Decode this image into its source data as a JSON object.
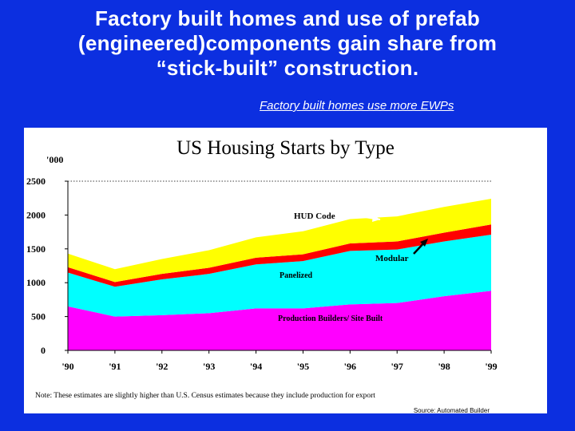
{
  "headline": {
    "line1": "Factory built homes and  use of prefab",
    "line2": "(engineered)components gain share from",
    "line3": "“stick-built” construction."
  },
  "subheadline": "Factory built homes use more EWPs",
  "colors": {
    "background": "#0c2fe0",
    "production": "#ff00ff",
    "panelized": "#00ffff",
    "modular": "#ff0000",
    "hud": "#ffff00"
  },
  "chart_data": {
    "type": "area",
    "stacked": true,
    "title": "US Housing Starts by Type",
    "ylabel": "'000",
    "ylim": [
      0,
      2500
    ],
    "yticks": [
      0,
      500,
      1000,
      1500,
      2000,
      2500
    ],
    "ytick_labels": [
      "0",
      "500",
      "1000",
      "1500",
      "2000",
      "2500"
    ],
    "categories": [
      "'90",
      "'91",
      "'92",
      "'93",
      "'94",
      "'95",
      "'96",
      "'97",
      "'98",
      "'99"
    ],
    "gridline": 2500,
    "series": [
      {
        "name": "Production Builders/ Site Built",
        "color": "#ff00ff",
        "values": [
          650,
          500,
          520,
          550,
          620,
          620,
          680,
          700,
          800,
          880
        ]
      },
      {
        "name": "Panelized",
        "color": "#00ffff",
        "values": [
          500,
          440,
          530,
          580,
          650,
          700,
          790,
          790,
          810,
          830
        ]
      },
      {
        "name": "Modular",
        "color": "#ff0000",
        "values": [
          80,
          70,
          80,
          90,
          100,
          100,
          110,
          120,
          130,
          150
        ]
      },
      {
        "name": "HUD Code",
        "color": "#ffff00",
        "values": [
          200,
          190,
          220,
          260,
          300,
          340,
          360,
          370,
          380,
          380
        ]
      }
    ],
    "annotations": [
      "HUD Code",
      "Modular",
      "Panelized",
      "Production Builders/ Site Built"
    ]
  },
  "footer": {
    "note": "Note: These estimates are slightly higher than U.S. Census estimates because they include production for export",
    "source": "Source: Automated Builder"
  }
}
